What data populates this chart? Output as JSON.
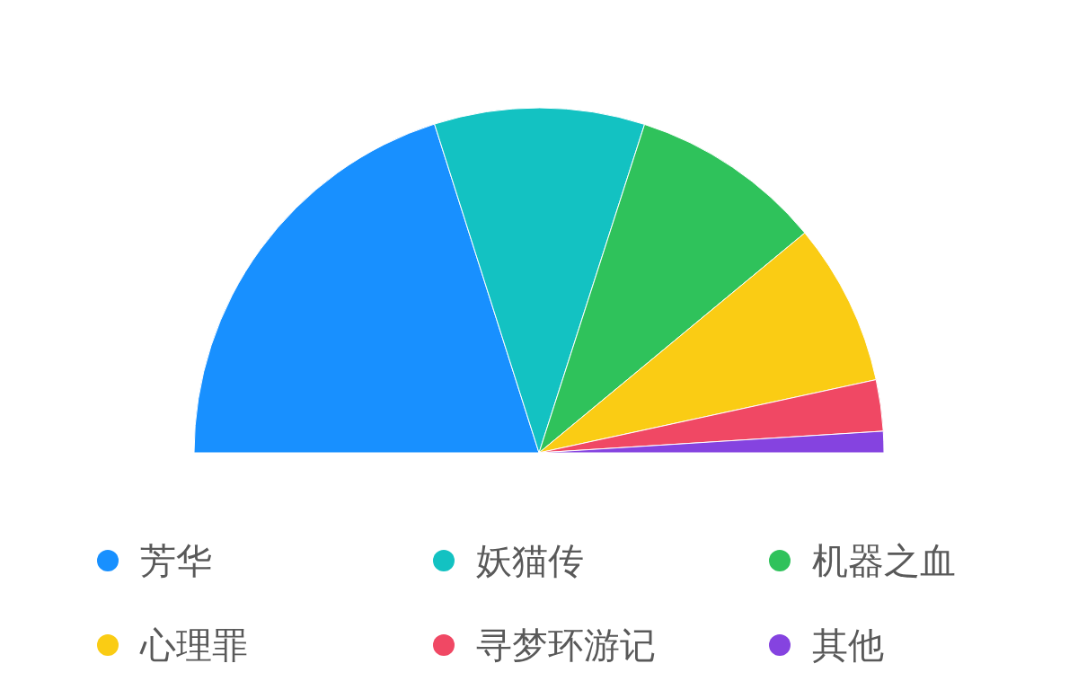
{
  "chart_data": {
    "type": "pie",
    "categories": [
      "芳华",
      "妖猫传",
      "机器之血",
      "心理罪",
      "寻梦环游记",
      "其他"
    ],
    "values": [
      40.2,
      19.7,
      18.1,
      15.2,
      4.8,
      2.0
    ],
    "colors": [
      "#1890ff",
      "#13c2c2",
      "#2fc25b",
      "#facc14",
      "#f04864",
      "#8543e0"
    ],
    "legend": "bottom"
  }
}
